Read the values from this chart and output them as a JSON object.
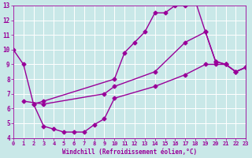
{
  "series": [
    {
      "x": [
        0,
        1,
        2,
        3,
        10,
        11,
        12,
        13,
        14,
        15,
        16,
        17,
        18,
        19,
        20,
        21,
        22,
        23
      ],
      "y": [
        10,
        9,
        6.3,
        6.5,
        8.0,
        9.8,
        10.5,
        11.2,
        12.5,
        12.5,
        13.0,
        13.0,
        13.3,
        11.2,
        9.2,
        9.0,
        8.5,
        8.8
      ]
    },
    {
      "x": [
        2,
        3,
        4,
        5,
        6,
        7,
        8,
        9,
        10,
        14,
        17,
        19,
        20,
        21,
        22,
        23
      ],
      "y": [
        6.3,
        4.8,
        4.6,
        4.4,
        4.4,
        4.4,
        4.9,
        5.3,
        6.7,
        7.5,
        8.3,
        9.0,
        9.0,
        9.0,
        8.5,
        8.8
      ]
    },
    {
      "x": [
        1,
        3,
        9,
        10,
        14,
        17,
        19,
        20,
        21,
        22,
        23
      ],
      "y": [
        6.5,
        6.3,
        7.0,
        7.5,
        8.5,
        10.5,
        11.2,
        9.2,
        9.0,
        8.5,
        8.8
      ]
    }
  ],
  "bg_color": "#c9e8e8",
  "grid_color": "#b0d0d0",
  "line_color": "#990099",
  "xlabel": "Windchill (Refroidissement éolien,°C)",
  "xlim": [
    0,
    23
  ],
  "ylim": [
    4,
    13
  ],
  "yticks": [
    4,
    5,
    6,
    7,
    8,
    9,
    10,
    11,
    12,
    13
  ],
  "xticks": [
    0,
    1,
    2,
    3,
    4,
    5,
    6,
    7,
    8,
    9,
    10,
    11,
    12,
    13,
    14,
    15,
    16,
    17,
    18,
    19,
    20,
    21,
    22,
    23
  ],
  "marker": "D",
  "markersize": 2.5,
  "linewidth": 1.0
}
